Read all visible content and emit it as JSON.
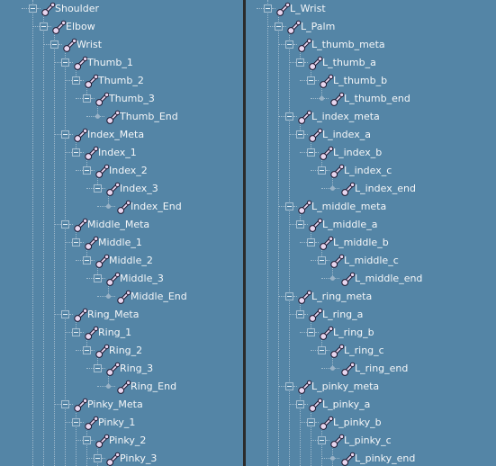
{
  "colors": {
    "panel_bg": "#5485a6",
    "divider": "#2b2b2b",
    "text": "#f4f6f8",
    "joint_icon_fill": "#e8d6ef",
    "joint_icon_stroke": "#1e1830"
  },
  "icons": {
    "joint": "joint-bone-icon"
  },
  "left_tree": [
    {
      "label": "Shoulder",
      "depth": 0,
      "leaf": false,
      "top": true
    },
    {
      "label": "Elbow",
      "depth": 1,
      "leaf": false
    },
    {
      "label": "Wrist",
      "depth": 2,
      "leaf": false
    },
    {
      "label": "Thumb_1",
      "depth": 3,
      "leaf": false
    },
    {
      "label": "Thumb_2",
      "depth": 4,
      "leaf": false
    },
    {
      "label": "Thumb_3",
      "depth": 5,
      "leaf": false
    },
    {
      "label": "Thumb_End",
      "depth": 6,
      "leaf": true
    },
    {
      "label": "Index_Meta",
      "depth": 3,
      "leaf": false
    },
    {
      "label": "Index_1",
      "depth": 4,
      "leaf": false
    },
    {
      "label": "Index_2",
      "depth": 5,
      "leaf": false
    },
    {
      "label": "Index_3",
      "depth": 6,
      "leaf": false
    },
    {
      "label": "Index_End",
      "depth": 7,
      "leaf": true
    },
    {
      "label": "Middle_Meta",
      "depth": 3,
      "leaf": false
    },
    {
      "label": "Middle_1",
      "depth": 4,
      "leaf": false
    },
    {
      "label": "Middle_2",
      "depth": 5,
      "leaf": false
    },
    {
      "label": "Middle_3",
      "depth": 6,
      "leaf": false
    },
    {
      "label": "Middle_End",
      "depth": 7,
      "leaf": true
    },
    {
      "label": "Ring_Meta",
      "depth": 3,
      "leaf": false
    },
    {
      "label": "Ring_1",
      "depth": 4,
      "leaf": false
    },
    {
      "label": "Ring_2",
      "depth": 5,
      "leaf": false
    },
    {
      "label": "Ring_3",
      "depth": 6,
      "leaf": false
    },
    {
      "label": "Ring_End",
      "depth": 7,
      "leaf": true
    },
    {
      "label": "Pinky_Meta",
      "depth": 3,
      "leaf": false
    },
    {
      "label": "Pinky_1",
      "depth": 4,
      "leaf": false
    },
    {
      "label": "Pinky_2",
      "depth": 5,
      "leaf": false
    },
    {
      "label": "Pinky_3",
      "depth": 6,
      "leaf": false
    }
  ],
  "right_tree": [
    {
      "label": "L_Wrist",
      "depth": 0,
      "leaf": false,
      "top": true
    },
    {
      "label": "L_Palm",
      "depth": 1,
      "leaf": false
    },
    {
      "label": "L_thumb_meta",
      "depth": 2,
      "leaf": false
    },
    {
      "label": "L_thumb_a",
      "depth": 3,
      "leaf": false
    },
    {
      "label": "L_thumb_b",
      "depth": 4,
      "leaf": false
    },
    {
      "label": "L_thumb_end",
      "depth": 5,
      "leaf": true
    },
    {
      "label": "L_index_meta",
      "depth": 2,
      "leaf": false
    },
    {
      "label": "L_index_a",
      "depth": 3,
      "leaf": false
    },
    {
      "label": "L_index_b",
      "depth": 4,
      "leaf": false
    },
    {
      "label": "L_index_c",
      "depth": 5,
      "leaf": false
    },
    {
      "label": "L_index_end",
      "depth": 6,
      "leaf": true
    },
    {
      "label": "L_middle_meta",
      "depth": 2,
      "leaf": false
    },
    {
      "label": "L_middle_a",
      "depth": 3,
      "leaf": false
    },
    {
      "label": "L_middle_b",
      "depth": 4,
      "leaf": false
    },
    {
      "label": "L_middle_c",
      "depth": 5,
      "leaf": false
    },
    {
      "label": "L_middle_end",
      "depth": 6,
      "leaf": true
    },
    {
      "label": "L_ring_meta",
      "depth": 2,
      "leaf": false
    },
    {
      "label": "L_ring_a",
      "depth": 3,
      "leaf": false
    },
    {
      "label": "L_ring_b",
      "depth": 4,
      "leaf": false
    },
    {
      "label": "L_ring_c",
      "depth": 5,
      "leaf": false
    },
    {
      "label": "L_ring_end",
      "depth": 6,
      "leaf": true
    },
    {
      "label": "L_pinky_meta",
      "depth": 2,
      "leaf": false
    },
    {
      "label": "L_pinky_a",
      "depth": 3,
      "leaf": false
    },
    {
      "label": "L_pinky_b",
      "depth": 4,
      "leaf": false
    },
    {
      "label": "L_pinky_c",
      "depth": 5,
      "leaf": false
    },
    {
      "label": "L_pinky_end",
      "depth": 6,
      "leaf": true
    }
  ]
}
